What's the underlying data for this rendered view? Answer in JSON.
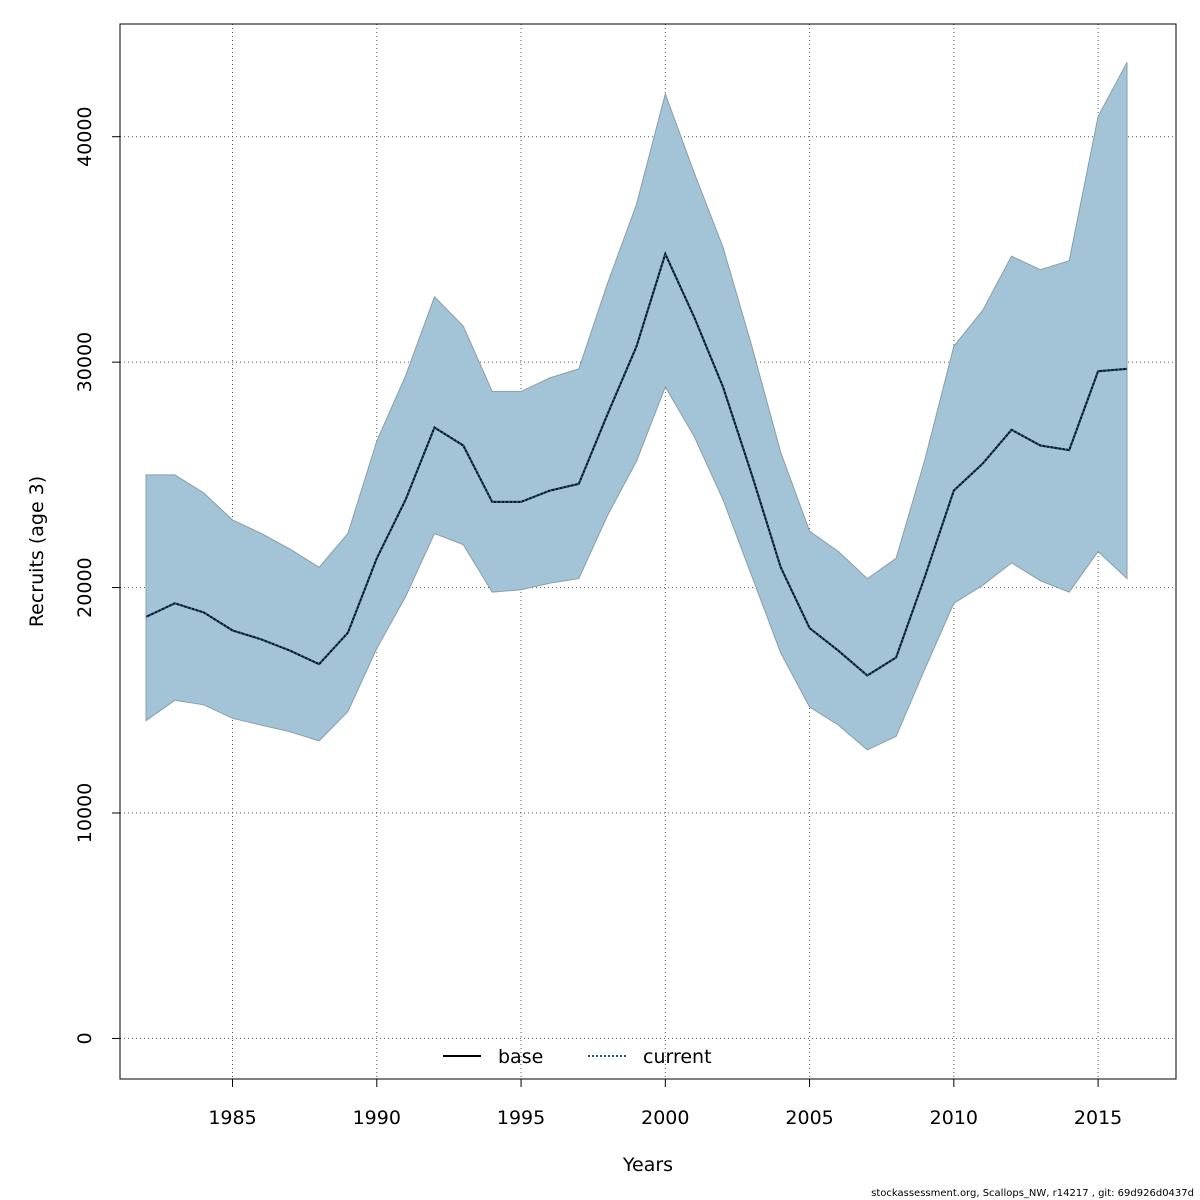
{
  "chart_data": {
    "type": "line",
    "title": "",
    "xlabel": "Years",
    "ylabel": "Recruits (age 3)",
    "xlim": [
      1981.1,
      2017.7
    ],
    "ylim": [
      -1800,
      45000
    ],
    "x_ticks": [
      1985,
      1990,
      1995,
      2000,
      2005,
      2010,
      2015
    ],
    "y_ticks": [
      0,
      10000,
      20000,
      30000,
      40000
    ],
    "grid": true,
    "legend_position": "bottom",
    "x": [
      1982,
      1983,
      1984,
      1985,
      1986,
      1987,
      1988,
      1989,
      1990,
      1991,
      1992,
      1993,
      1994,
      1995,
      1996,
      1997,
      1998,
      1999,
      2000,
      2001,
      2002,
      2003,
      2004,
      2005,
      2006,
      2007,
      2008,
      2009,
      2010,
      2011,
      2012,
      2013,
      2014,
      2015,
      2016
    ],
    "band": {
      "fill_color": "#a3c4d6",
      "edge_color": "#8a9ea8",
      "upper": [
        25000,
        25000,
        24200,
        23000,
        22400,
        21700,
        20900,
        22400,
        26500,
        29400,
        32900,
        31600,
        28700,
        28700,
        29300,
        29700,
        33500,
        37000,
        41900,
        38400,
        35100,
        30700,
        26000,
        22500,
        21600,
        20400,
        21300,
        25700,
        30700,
        32300,
        34700,
        34100,
        34500,
        40900,
        43300
      ],
      "lower": [
        14100,
        15000,
        14800,
        14200,
        13900,
        13600,
        13200,
        14500,
        17300,
        19600,
        22400,
        21900,
        19800,
        19900,
        20200,
        20400,
        23200,
        25600,
        28900,
        26700,
        23900,
        20500,
        17100,
        14700,
        13900,
        12800,
        13400,
        16400,
        19300,
        20100,
        21100,
        20300,
        19800,
        21600,
        20400
      ]
    },
    "series": [
      {
        "name": "base",
        "color": "#000000",
        "dash": "solid",
        "values": [
          18700,
          19300,
          18900,
          18100,
          17700,
          17200,
          16600,
          18000,
          21300,
          23900,
          27100,
          26300,
          23800,
          23800,
          24300,
          24600,
          27700,
          30700,
          34800,
          32000,
          28900,
          25000,
          20900,
          18200,
          17200,
          16100,
          16900,
          20500,
          24300,
          25500,
          27000,
          26300,
          26100,
          29600,
          29700
        ]
      },
      {
        "name": "current",
        "color": "#1a5a8a",
        "dash": "dotted",
        "values": [
          18700,
          19300,
          18900,
          18100,
          17700,
          17200,
          16600,
          18000,
          21300,
          23900,
          27100,
          26300,
          23800,
          23800,
          24300,
          24600,
          27700,
          30700,
          34800,
          32000,
          28900,
          25000,
          20900,
          18200,
          17200,
          16100,
          16900,
          20500,
          24300,
          25500,
          27000,
          26300,
          26100,
          29600,
          29700
        ]
      }
    ]
  },
  "footer": {
    "credit": "stockassessment.org, Scallops_NW, r14217 , git: 69d926d0437d"
  }
}
